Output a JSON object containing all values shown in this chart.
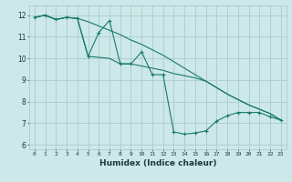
{
  "xlabel": "Humidex (Indice chaleur)",
  "background_color": "#cce8e8",
  "grid_color": "#aacccc",
  "line_color": "#1a7a6a",
  "xlim": [
    -0.5,
    23.5
  ],
  "ylim": [
    5.8,
    12.45
  ],
  "yticks": [
    6,
    7,
    8,
    9,
    10,
    11,
    12
  ],
  "xticks": [
    0,
    1,
    2,
    3,
    4,
    5,
    6,
    7,
    8,
    9,
    10,
    11,
    12,
    13,
    14,
    15,
    16,
    17,
    18,
    19,
    20,
    21,
    22,
    23
  ],
  "line1_x": [
    0,
    1,
    2,
    3,
    4,
    5,
    6,
    7,
    8,
    9,
    10,
    11,
    12,
    13,
    14,
    15,
    16,
    17,
    18,
    19,
    20,
    21,
    22,
    23
  ],
  "line1_y": [
    11.9,
    12.0,
    11.8,
    11.9,
    11.85,
    10.1,
    11.2,
    11.75,
    9.75,
    9.75,
    10.3,
    9.25,
    9.25,
    6.6,
    6.5,
    6.55,
    6.65,
    7.1,
    7.35,
    7.5,
    7.5,
    7.5,
    7.3,
    7.15
  ],
  "line2_x": [
    0,
    1,
    2,
    3,
    4,
    5,
    6,
    7,
    8,
    9,
    10,
    11,
    12,
    13,
    14,
    15,
    16,
    17,
    18,
    19,
    20,
    21,
    22,
    23
  ],
  "line2_y": [
    11.9,
    12.0,
    11.8,
    11.9,
    11.85,
    11.7,
    11.5,
    11.3,
    11.1,
    10.85,
    10.65,
    10.4,
    10.15,
    9.85,
    9.55,
    9.25,
    8.95,
    8.65,
    8.35,
    8.1,
    7.85,
    7.65,
    7.45,
    7.15
  ],
  "line3_x": [
    0,
    1,
    2,
    3,
    4,
    5,
    6,
    7,
    8,
    9,
    10,
    11,
    12,
    13,
    14,
    15,
    16,
    17,
    18,
    19,
    20,
    21,
    22,
    23
  ],
  "line3_y": [
    11.9,
    12.0,
    11.8,
    11.9,
    11.85,
    10.1,
    10.05,
    10.0,
    9.75,
    9.75,
    9.65,
    9.55,
    9.45,
    9.3,
    9.2,
    9.1,
    8.95,
    8.65,
    8.35,
    8.1,
    7.85,
    7.65,
    7.45,
    7.15
  ]
}
